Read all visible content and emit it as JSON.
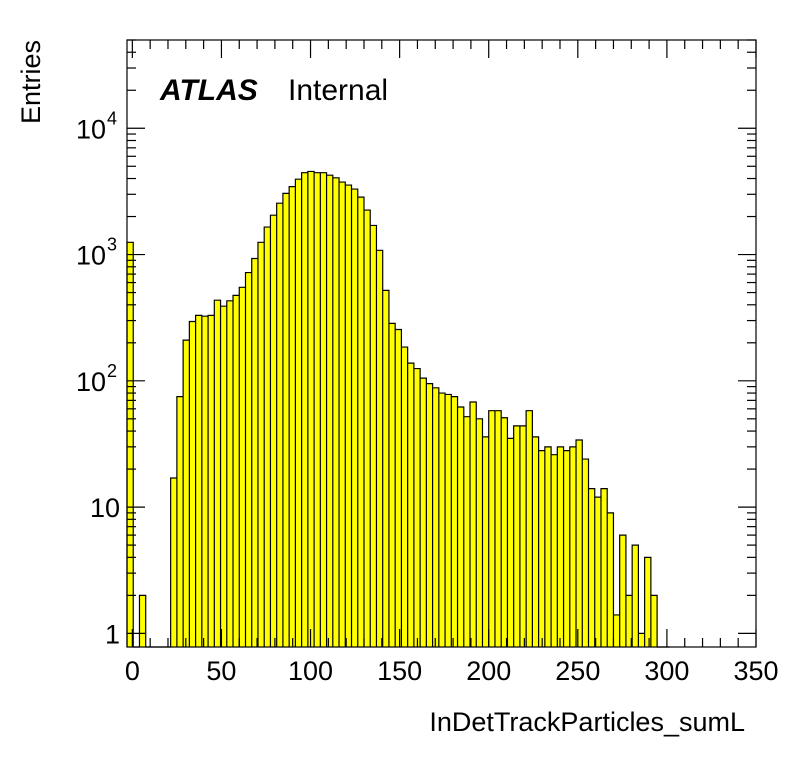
{
  "chart_data": {
    "type": "bar",
    "title": "",
    "xlabel": "InDetTrackParticles_sumL",
    "ylabel": "Entries",
    "xlim": [
      -3,
      350
    ],
    "ylim": [
      0.78,
      50000
    ],
    "yscale": "log",
    "grid": false,
    "fill_color": "#ffff00",
    "line_color": "#000000",
    "bin_width": 3.5,
    "x_ticks": [
      "0",
      "50",
      "100",
      "150",
      "200",
      "250",
      "300",
      "350"
    ],
    "y_ticks": [
      {
        "base": "1",
        "exp": ""
      },
      {
        "base": "10",
        "exp": ""
      },
      {
        "base": "10",
        "exp": "2"
      },
      {
        "base": "10",
        "exp": "3"
      },
      {
        "base": "10",
        "exp": "4"
      }
    ],
    "label_main": "ATLAS",
    "label_sub": "Internal",
    "bins": [
      {
        "x": -3,
        "y": 1250
      },
      {
        "x": 0.5,
        "y": 0
      },
      {
        "x": 4,
        "y": 2
      },
      {
        "x": 7.5,
        "y": 0
      },
      {
        "x": 11,
        "y": 0
      },
      {
        "x": 14.5,
        "y": 0
      },
      {
        "x": 18,
        "y": 0
      },
      {
        "x": 21.5,
        "y": 17
      },
      {
        "x": 25,
        "y": 75
      },
      {
        "x": 28.5,
        "y": 210
      },
      {
        "x": 32,
        "y": 295
      },
      {
        "x": 35.5,
        "y": 330
      },
      {
        "x": 39,
        "y": 325
      },
      {
        "x": 42.5,
        "y": 330
      },
      {
        "x": 46,
        "y": 435
      },
      {
        "x": 49.5,
        "y": 390
      },
      {
        "x": 53,
        "y": 430
      },
      {
        "x": 56.5,
        "y": 475
      },
      {
        "x": 60,
        "y": 550
      },
      {
        "x": 63.5,
        "y": 720
      },
      {
        "x": 67,
        "y": 930
      },
      {
        "x": 70.5,
        "y": 1250
      },
      {
        "x": 74,
        "y": 1650
      },
      {
        "x": 77.5,
        "y": 2050
      },
      {
        "x": 81,
        "y": 2550
      },
      {
        "x": 84.5,
        "y": 3050
      },
      {
        "x": 88,
        "y": 3450
      },
      {
        "x": 91.5,
        "y": 3950
      },
      {
        "x": 95,
        "y": 4450
      },
      {
        "x": 98.5,
        "y": 4550
      },
      {
        "x": 102,
        "y": 4450
      },
      {
        "x": 105.5,
        "y": 4450
      },
      {
        "x": 109,
        "y": 4250
      },
      {
        "x": 112.5,
        "y": 4050
      },
      {
        "x": 116,
        "y": 3750
      },
      {
        "x": 119.5,
        "y": 3550
      },
      {
        "x": 123,
        "y": 3300
      },
      {
        "x": 126.5,
        "y": 2850
      },
      {
        "x": 130,
        "y": 2250
      },
      {
        "x": 133.5,
        "y": 1700
      },
      {
        "x": 137,
        "y": 1080
      },
      {
        "x": 140.5,
        "y": 520
      },
      {
        "x": 144,
        "y": 285
      },
      {
        "x": 147.5,
        "y": 255
      },
      {
        "x": 151,
        "y": 185
      },
      {
        "x": 154.5,
        "y": 138
      },
      {
        "x": 158,
        "y": 125
      },
      {
        "x": 161.5,
        "y": 105
      },
      {
        "x": 165,
        "y": 95
      },
      {
        "x": 168.5,
        "y": 88
      },
      {
        "x": 172,
        "y": 80
      },
      {
        "x": 175.5,
        "y": 78
      },
      {
        "x": 179,
        "y": 75
      },
      {
        "x": 182.5,
        "y": 62
      },
      {
        "x": 186,
        "y": 52
      },
      {
        "x": 189.5,
        "y": 68
      },
      {
        "x": 193,
        "y": 50
      },
      {
        "x": 196.5,
        "y": 36
      },
      {
        "x": 200,
        "y": 58
      },
      {
        "x": 203.5,
        "y": 58
      },
      {
        "x": 207,
        "y": 51
      },
      {
        "x": 210.5,
        "y": 35
      },
      {
        "x": 214,
        "y": 44
      },
      {
        "x": 217.5,
        "y": 44
      },
      {
        "x": 221,
        "y": 58
      },
      {
        "x": 224.5,
        "y": 36
      },
      {
        "x": 228,
        "y": 28
      },
      {
        "x": 231.5,
        "y": 30
      },
      {
        "x": 235,
        "y": 26
      },
      {
        "x": 238.5,
        "y": 30
      },
      {
        "x": 242,
        "y": 28
      },
      {
        "x": 245.5,
        "y": 30
      },
      {
        "x": 249,
        "y": 34
      },
      {
        "x": 252.5,
        "y": 24
      },
      {
        "x": 256,
        "y": 14
      },
      {
        "x": 259.5,
        "y": 12
      },
      {
        "x": 263,
        "y": 14
      },
      {
        "x": 266.5,
        "y": 9
      },
      {
        "x": 270,
        "y": 1.4
      },
      {
        "x": 273.5,
        "y": 6
      },
      {
        "x": 277,
        "y": 2
      },
      {
        "x": 280.5,
        "y": 5
      },
      {
        "x": 284,
        "y": 1
      },
      {
        "x": 287.5,
        "y": 4
      },
      {
        "x": 291,
        "y": 2
      },
      {
        "x": 294.5,
        "y": 0
      },
      {
        "x": 298,
        "y": 0
      }
    ]
  }
}
